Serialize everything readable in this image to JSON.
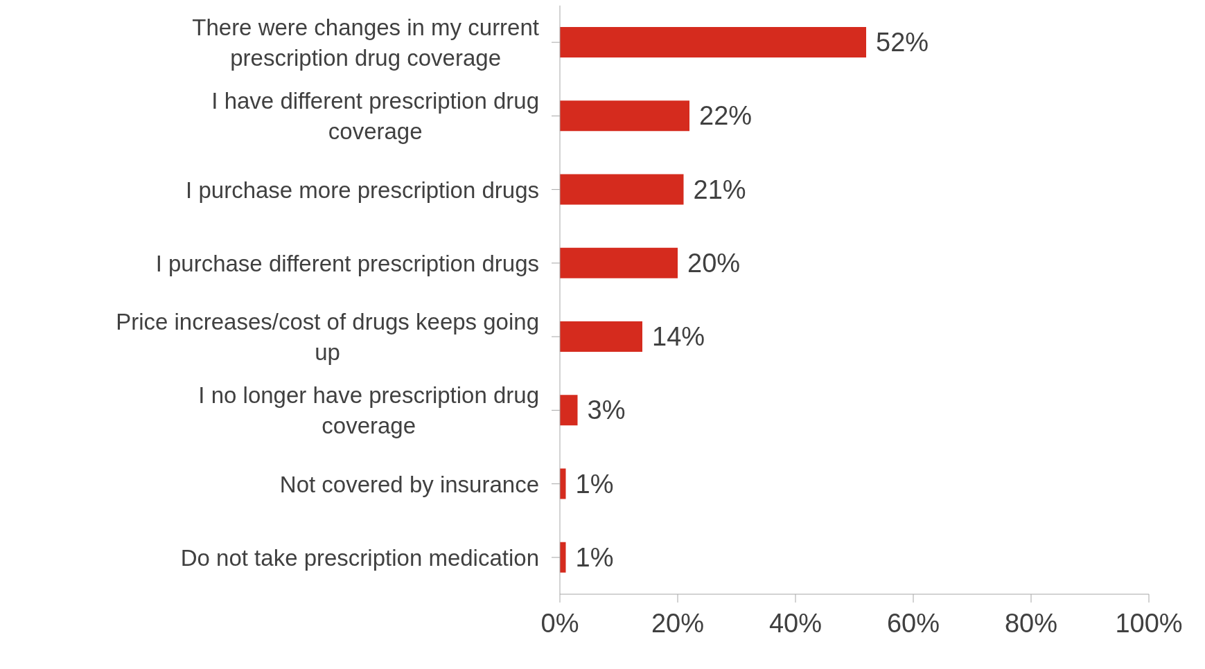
{
  "chart_data": {
    "type": "bar",
    "orientation": "horizontal",
    "categories": [
      "There were changes in my current prescription drug coverage",
      "I have different prescription drug coverage",
      "I purchase more prescription drugs",
      "I purchase different prescription drugs",
      "Price increases/cost of drugs keeps going up",
      "I no longer have prescription drug coverage",
      "Not covered by insurance",
      "Do not take prescription medication"
    ],
    "values": [
      52,
      22,
      21,
      20,
      14,
      3,
      1,
      1
    ],
    "value_labels": [
      "52%",
      "22%",
      "21%",
      "20%",
      "14%",
      "3%",
      "1%",
      "1%"
    ],
    "color": "#d52b1e",
    "xlim": [
      0,
      100
    ],
    "xticks": [
      {
        "value": 0,
        "label": "0%"
      },
      {
        "value": 20,
        "label": "20%"
      },
      {
        "value": 40,
        "label": "40%"
      },
      {
        "value": 60,
        "label": "60%"
      },
      {
        "value": 80,
        "label": "80%"
      },
      {
        "value": 100,
        "label": "100%"
      }
    ],
    "grid": false,
    "legend": false
  }
}
